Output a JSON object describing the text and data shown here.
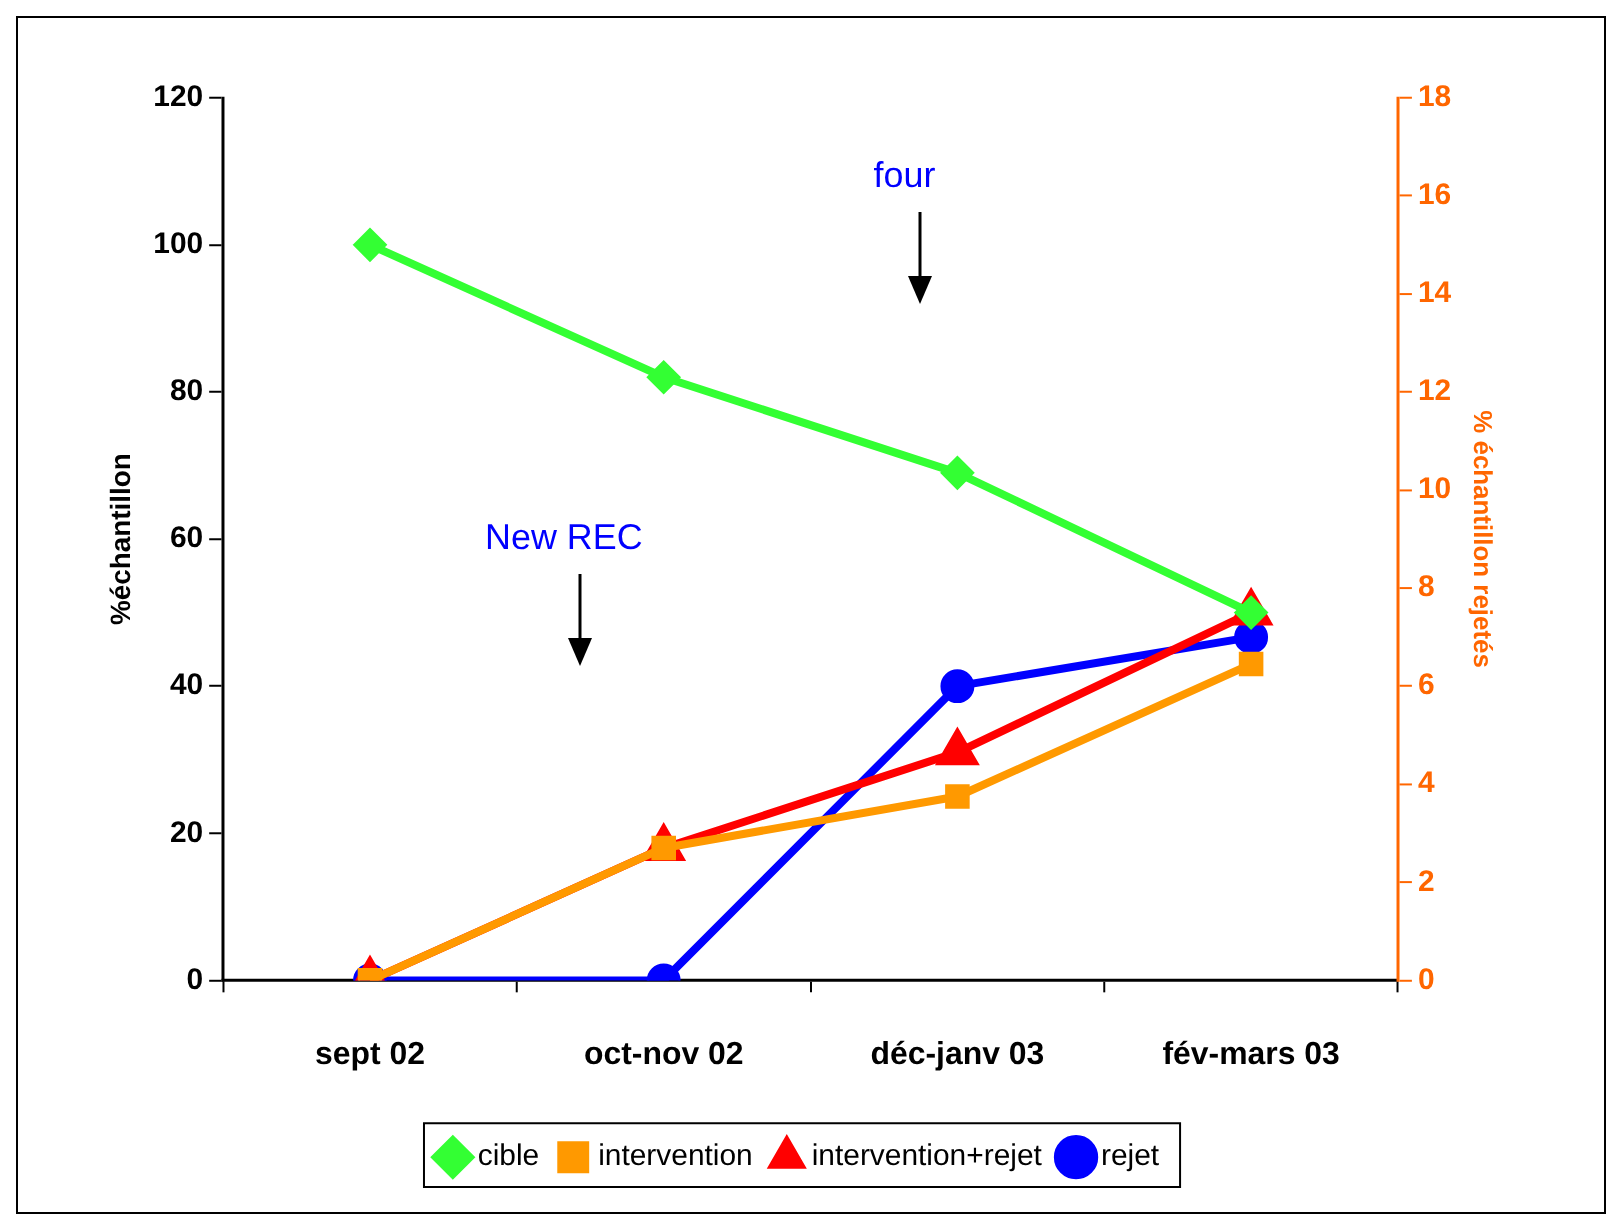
{
  "chart_data": {
    "type": "line",
    "categories": [
      "sept 02",
      "oct-nov 02",
      "déc-janv 03",
      "fév-mars 03"
    ],
    "series": [
      {
        "name": "cible",
        "color": "#33ff33",
        "marker": "diamond",
        "values": [
          100,
          82,
          69,
          50
        ]
      },
      {
        "name": "intervention",
        "color": "#ff9900",
        "marker": "square",
        "values": [
          0,
          18,
          25,
          43
        ]
      },
      {
        "name": "intervention+rejet",
        "color": "#ff0000",
        "marker": "triangle",
        "values": [
          0,
          18,
          31,
          50
        ]
      },
      {
        "name": "rejet",
        "color": "#0000ff",
        "marker": "circle",
        "axis": "y2",
        "values": [
          0,
          0,
          6,
          7
        ]
      }
    ],
    "ylabel": "%échantillon",
    "y2label": "% échantillon rejetés",
    "ylim": [
      0,
      120
    ],
    "yticks": [
      0,
      20,
      40,
      60,
      80,
      100,
      120
    ],
    "y2lim": [
      0,
      18
    ],
    "y2ticks": [
      0,
      2,
      4,
      6,
      8,
      10,
      12,
      14,
      16,
      18
    ],
    "annotations": [
      "New REC",
      "four"
    ],
    "legend": "bottom",
    "grid": false,
    "line_style": "solid"
  }
}
